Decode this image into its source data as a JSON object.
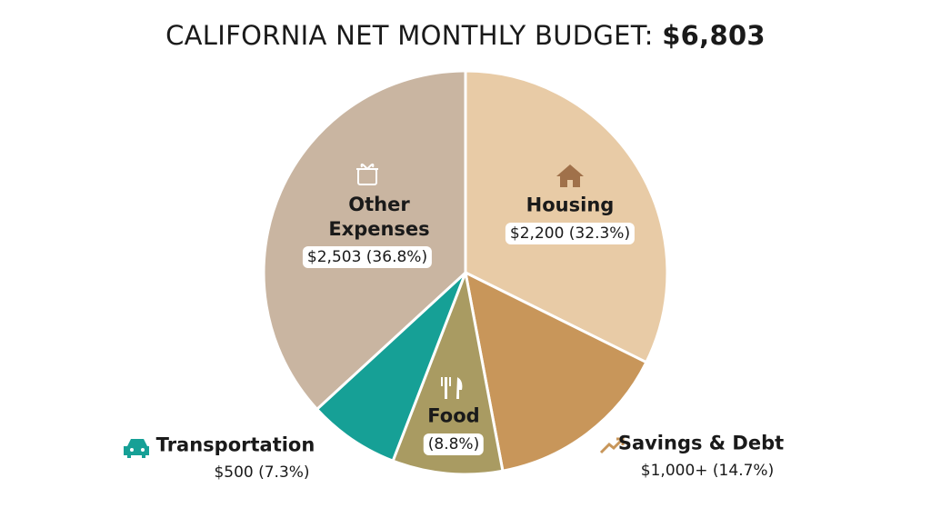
{
  "chart_data": {
    "type": "pie",
    "title": "CALIFORNIA NET MONTHLY BUDGET:",
    "title_amount": "$6,803",
    "categories": [
      "Housing",
      "Savings & Debt",
      "Food",
      "Transportation",
      "Other Expenses"
    ],
    "values": [
      32.3,
      14.7,
      8.8,
      7.3,
      36.8
    ],
    "value_labels": [
      "$2,200 (32.3%)",
      "$1,000+ (14.7%)",
      "(8.8%)",
      "$500 (7.3%)",
      "$2,503 (36.8%)"
    ],
    "colors": [
      "#e8cba6",
      "#c8965a",
      "#a99b62",
      "#16a096",
      "#c9b5a1"
    ]
  }
}
